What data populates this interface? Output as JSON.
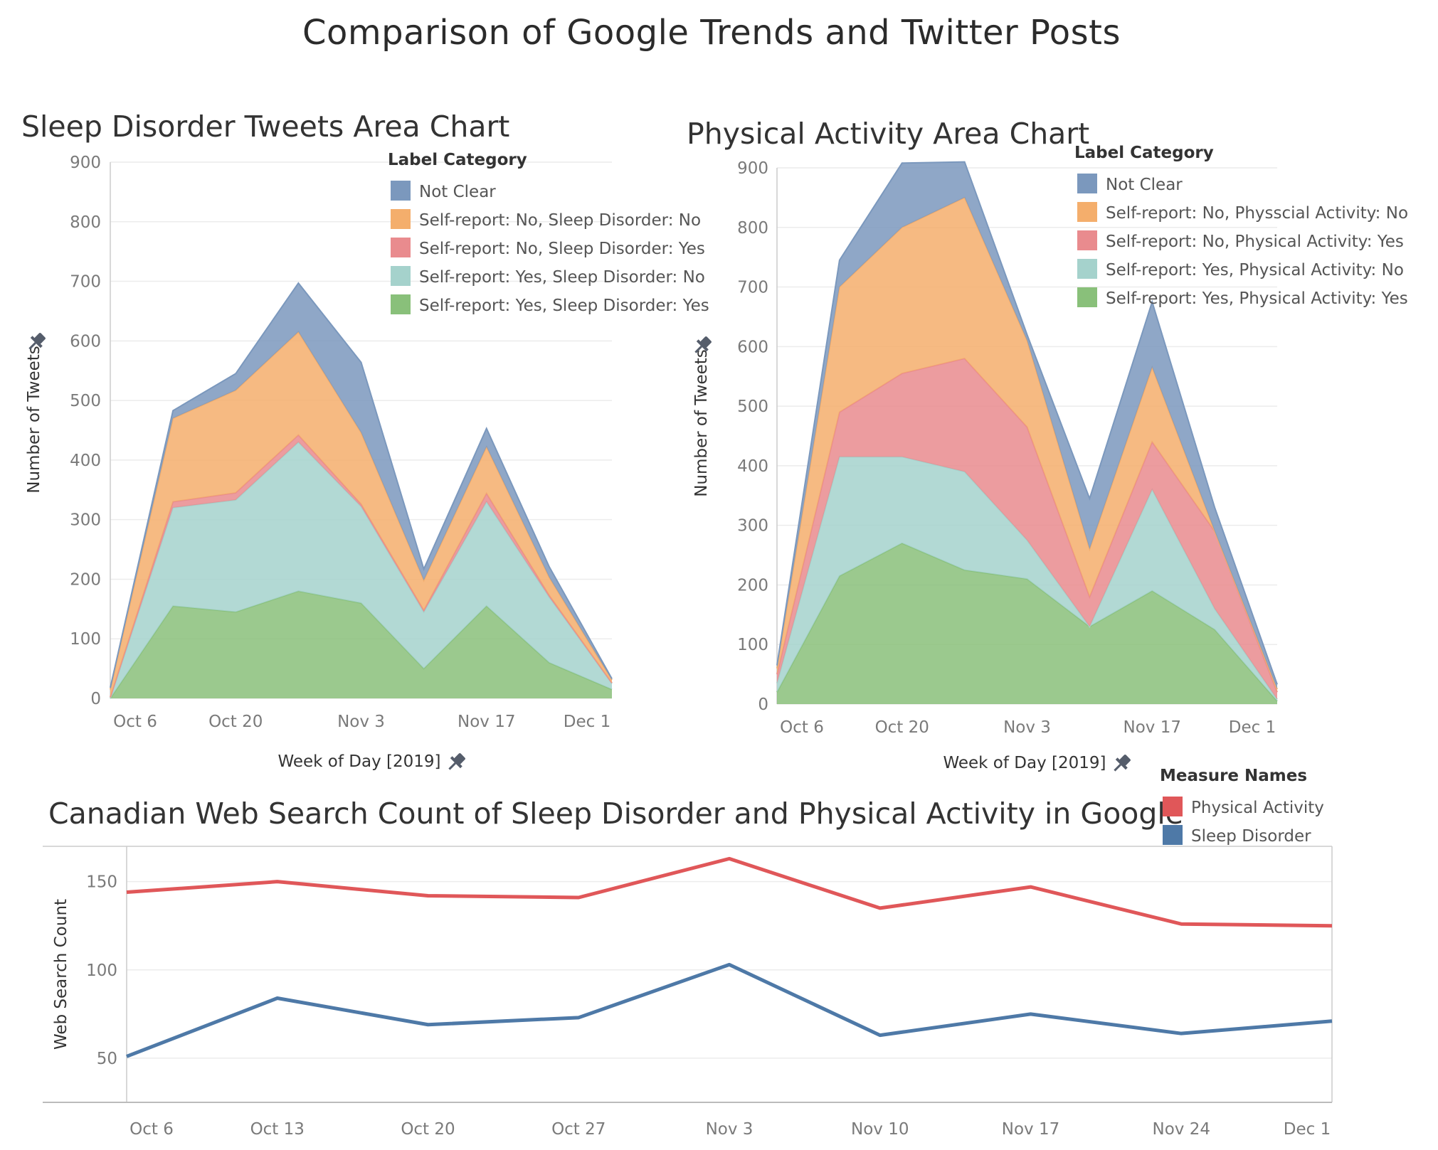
{
  "main_title": "Comparison of Google Trends and Twitter Posts",
  "colors": {
    "not_clear": "#7b98bd",
    "no_no": "#f4ae6c",
    "no_yes": "#e98b8e",
    "yes_no": "#a5d2cc",
    "yes_yes": "#89c07a",
    "physical_line": "#e05759",
    "sleep_line": "#4e79a7"
  },
  "chart_data": [
    {
      "type": "area",
      "title": "Sleep Disorder Tweets Area Chart",
      "xlabel": "Week of Day [2019]",
      "ylabel": "Number of Tweets",
      "x_ticks": [
        "Oct 6",
        "Oct 20",
        "Nov 3",
        "Nov 17",
        "Dec 1"
      ],
      "y_ticks": [
        "0",
        "100",
        "200",
        "300",
        "400",
        "500",
        "600",
        "700",
        "800",
        "900"
      ],
      "ylim": [
        0,
        900
      ],
      "x": [
        "Oct 6",
        "Oct 13",
        "Oct 20",
        "Oct 27",
        "Nov 3",
        "Nov 10",
        "Nov 17",
        "Nov 24",
        "Dec 1"
      ],
      "stacked": true,
      "legend_title": "Label Category",
      "legend_position": "top-right",
      "series": [
        {
          "name": "Self-report: Yes, Sleep Disorder: Yes",
          "color": "#89c07a",
          "values": [
            0,
            155,
            145,
            180,
            160,
            50,
            155,
            60,
            15
          ]
        },
        {
          "name": "Self-report: Yes, Sleep Disorder: No",
          "color": "#a5d2cc",
          "values": [
            0,
            165,
            188,
            250,
            162,
            95,
            175,
            110,
            10
          ]
        },
        {
          "name": "Self-report: No, Sleep Disorder: Yes",
          "color": "#e98b8e",
          "values": [
            2,
            10,
            12,
            12,
            4,
            3,
            14,
            3,
            1
          ]
        },
        {
          "name": "Self-report: No, Sleep Disorder: No",
          "color": "#f4ae6c",
          "values": [
            13,
            140,
            172,
            173,
            120,
            50,
            78,
            30,
            5
          ]
        },
        {
          "name": "Not Clear",
          "color": "#7b98bd",
          "values": [
            3,
            13,
            28,
            82,
            118,
            19,
            31,
            18,
            2
          ]
        }
      ]
    },
    {
      "type": "area",
      "title": "Physical Activity Area Chart",
      "xlabel": "Week of Day [2019]",
      "ylabel": "Number of Tweets",
      "x_ticks": [
        "Oct 6",
        "Oct 20",
        "Nov 3",
        "Nov 17",
        "Dec 1"
      ],
      "y_ticks": [
        "0",
        "100",
        "200",
        "300",
        "400",
        "500",
        "600",
        "700",
        "800",
        "900"
      ],
      "ylim": [
        0,
        900
      ],
      "x": [
        "Oct 6",
        "Oct 13",
        "Oct 20",
        "Oct 27",
        "Nov 3",
        "Nov 10",
        "Nov 17",
        "Nov 24",
        "Dec 1"
      ],
      "stacked": true,
      "legend_title": "Label Category",
      "legend_position": "top-right",
      "series": [
        {
          "name": "Self-report: Yes, Physical Activity: Yes",
          "color": "#89c07a",
          "values": [
            20,
            215,
            270,
            225,
            210,
            130,
            190,
            125,
            5
          ]
        },
        {
          "name": "Self-report: Yes, Physical Activity: No",
          "color": "#a5d2cc",
          "values": [
            15,
            200,
            145,
            165,
            65,
            0,
            170,
            35,
            3
          ]
        },
        {
          "name": "Self-report: No, Physical Activity: Yes",
          "color": "#e98b8e",
          "values": [
            15,
            75,
            140,
            190,
            190,
            50,
            80,
            130,
            12
          ]
        },
        {
          "name": "Self-report: No, Physscial Activity: No",
          "color": "#f4ae6c",
          "values": [
            10,
            210,
            245,
            270,
            145,
            80,
            125,
            0,
            5
          ]
        },
        {
          "name": "Not Clear",
          "color": "#7b98bd",
          "values": [
            5,
            45,
            108,
            60,
            10,
            85,
            110,
            40,
            8
          ]
        }
      ]
    },
    {
      "type": "line",
      "title": "Canadian Web Search Count of Sleep Disorder and Physical Activity in Google",
      "xlabel": "",
      "ylabel": "Web Search Count",
      "x": [
        "Oct 6",
        "Oct 13",
        "Oct 20",
        "Oct 27",
        "Nov 3",
        "Nov 10",
        "Nov 17",
        "Nov 24",
        "Dec 1"
      ],
      "y_ticks": [
        "50",
        "100",
        "150"
      ],
      "ylim": [
        25,
        170
      ],
      "legend_title": "Measure Names",
      "legend_position": "top-right",
      "series": [
        {
          "name": "Physical Activity",
          "color": "#e05759",
          "values": [
            144,
            150,
            142,
            141,
            163,
            135,
            147,
            126,
            125
          ]
        },
        {
          "name": "Sleep Disorder",
          "color": "#4e79a7",
          "values": [
            51,
            84,
            69,
            73,
            103,
            63,
            75,
            64,
            71
          ]
        }
      ]
    }
  ]
}
